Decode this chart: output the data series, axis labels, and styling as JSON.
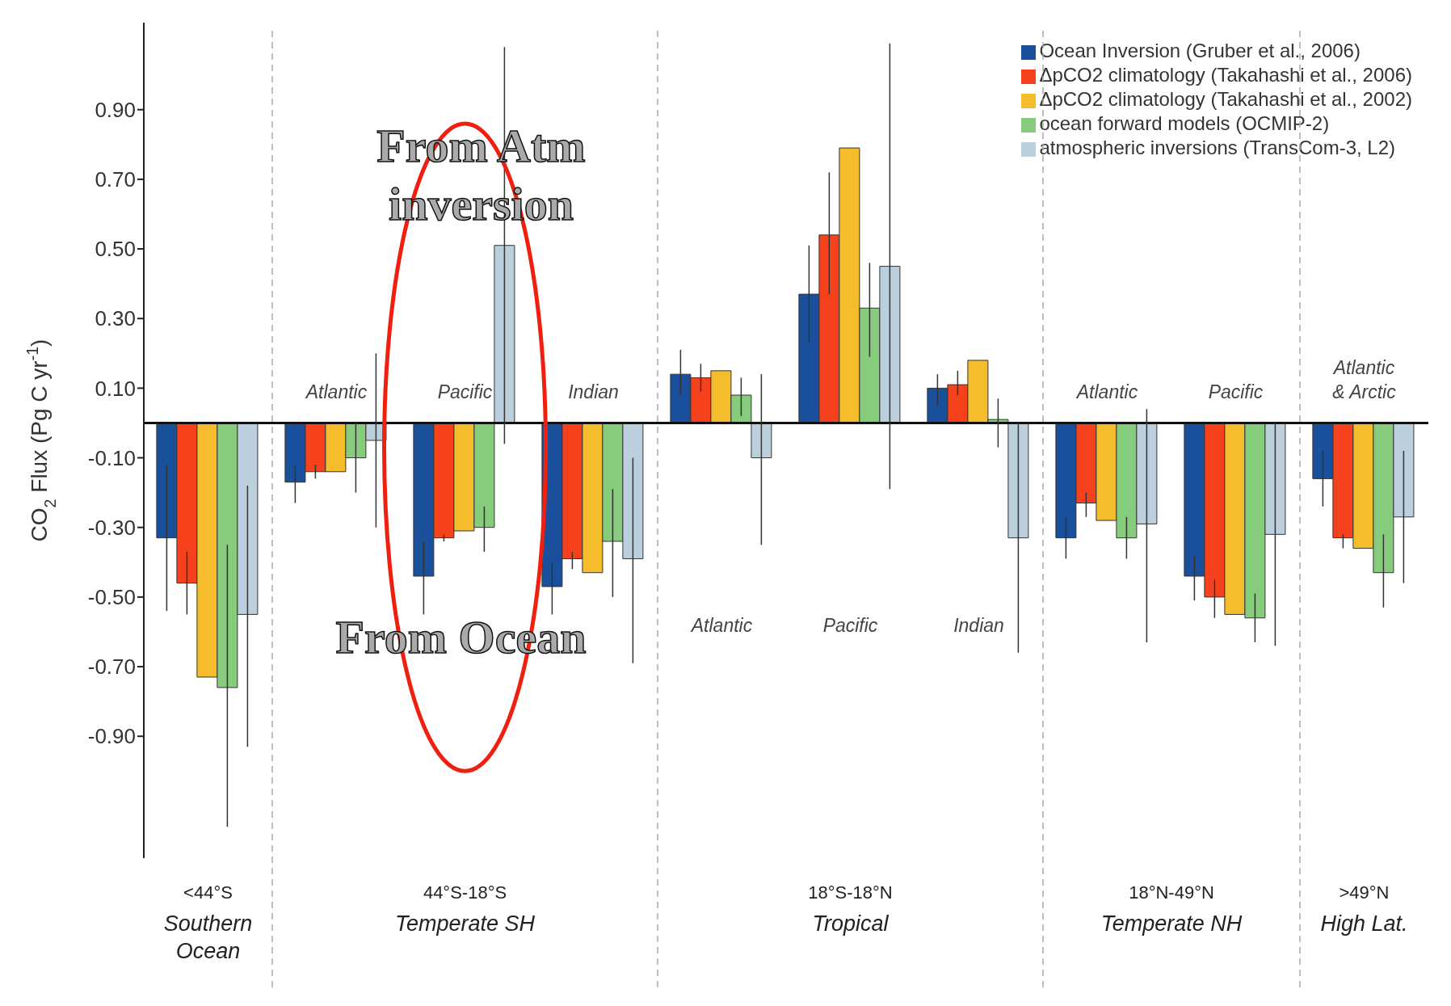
{
  "chart_data": {
    "type": "bar",
    "ylabel": "CO$_{2}$ Flux (Pg C yr$^{-1}$)",
    "categories": [
      null,
      "Atlantic",
      "Pacific",
      "Indian",
      "Atlantic",
      "Pacific",
      "Indian",
      "Atlantic",
      "Pacific",
      "Atlantic & Arctic"
    ],
    "series": [
      {
        "name": "Ocean Inversion (Gruber et al., 2006)",
        "color": "#1a4f9c",
        "values": [
          -0.33,
          -0.17,
          -0.44,
          -0.47,
          0.14,
          0.37,
          0.1,
          -0.33,
          -0.44,
          -0.16
        ],
        "errors": [
          [
            -0.54,
            -0.12
          ],
          [
            -0.23,
            -0.12
          ],
          [
            -0.55,
            -0.34
          ],
          [
            -0.55,
            -0.4
          ],
          [
            0.08,
            0.21
          ],
          [
            0.23,
            0.51
          ],
          [
            0.05,
            0.14
          ],
          [
            -0.39,
            -0.27
          ],
          [
            -0.51,
            -0.38
          ],
          [
            -0.24,
            -0.08
          ]
        ]
      },
      {
        "name": "ΔpCO2 climatology (Takahashi et al., 2006)",
        "color": "#f5421c",
        "values": [
          -0.46,
          -0.14,
          -0.33,
          -0.39,
          0.13,
          0.54,
          0.11,
          -0.23,
          -0.5,
          -0.33
        ],
        "errors": [
          [
            -0.55,
            -0.37
          ],
          [
            -0.16,
            -0.12
          ],
          [
            -0.34,
            -0.32
          ],
          [
            -0.42,
            -0.37
          ],
          [
            0.09,
            0.17
          ],
          [
            0.37,
            0.72
          ],
          [
            0.08,
            0.15
          ],
          [
            -0.27,
            -0.2
          ],
          [
            -0.56,
            -0.45
          ],
          [
            -0.36,
            -0.32
          ]
        ]
      },
      {
        "name": "ΔpCO2 climatology (Takahashi et al., 2002)",
        "color": "#f5bd2c",
        "values": [
          -0.73,
          -0.14,
          -0.31,
          -0.43,
          0.15,
          0.79,
          0.18,
          -0.28,
          -0.55,
          -0.36
        ]
      },
      {
        "name": "ocean forward models (OCMIP-2)",
        "color": "#86cc7c",
        "values": [
          -0.76,
          -0.1,
          -0.3,
          -0.34,
          0.08,
          0.33,
          0.01,
          -0.33,
          -0.56,
          -0.43
        ],
        "errors": [
          [
            -1.16,
            -0.35
          ],
          [
            -0.2,
            0.0
          ],
          [
            -0.37,
            -0.24
          ],
          [
            -0.5,
            -0.19
          ],
          [
            0.02,
            0.13
          ],
          [
            0.19,
            0.46
          ],
          [
            -0.07,
            0.07
          ],
          [
            -0.39,
            -0.27
          ],
          [
            -0.63,
            -0.49
          ],
          [
            -0.53,
            -0.32
          ]
        ]
      },
      {
        "name": "atmospheric inversions (TransCom-3, L2)",
        "color": "#bccfdd",
        "values": [
          -0.55,
          -0.05,
          0.51,
          -0.39,
          -0.1,
          0.45,
          -0.33,
          -0.29,
          -0.32,
          -0.27
        ],
        "errors": [
          [
            -0.93,
            -0.18
          ],
          [
            -0.3,
            0.2
          ],
          [
            -0.06,
            1.08
          ],
          [
            -0.69,
            -0.1
          ],
          [
            -0.35,
            0.14
          ],
          [
            -0.19,
            1.09
          ],
          [
            -0.66,
            0.0
          ],
          [
            -0.63,
            0.04
          ],
          [
            -0.64,
            0.0
          ],
          [
            -0.46,
            -0.08
          ]
        ]
      }
    ],
    "ylim": [
      -1.25,
      1.15
    ],
    "yticks": [
      {
        "value": -0.9,
        "label": "-0.90"
      },
      {
        "value": -0.7,
        "label": "-0.70"
      },
      {
        "value": -0.5,
        "label": "-0.50"
      },
      {
        "value": -0.3,
        "label": "-0.30"
      },
      {
        "value": -0.1,
        "label": "-0.10"
      },
      {
        "value": 0.1,
        "label": "0.10"
      },
      {
        "value": 0.3,
        "label": "0.30"
      },
      {
        "value": 0.5,
        "label": "0.50"
      },
      {
        "value": 0.7,
        "label": "0.70"
      },
      {
        "value": 0.9,
        "label": "0.90"
      }
    ],
    "legend": "top right",
    "annotations": [
      "<44°S",
      "Southern Ocean",
      "44°S-18°S",
      "Temperate SH",
      "18°S-18°N",
      "Tropical",
      "18°N-49°N",
      "Temperate NH",
      ">49°N",
      "High Lat.",
      "From Atm inversion",
      "From Ocean"
    ]
  }
}
